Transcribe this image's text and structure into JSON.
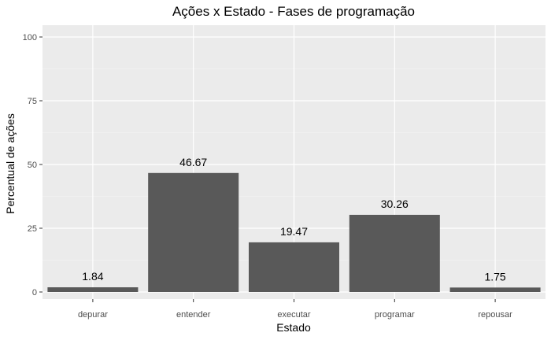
{
  "chart_data": {
    "type": "bar",
    "title": "Ações x Estado - Fases de programação",
    "xlabel": "Estado",
    "ylabel": "Percentual de ações",
    "categories": [
      "depurar",
      "entender",
      "executar",
      "programar",
      "repousar"
    ],
    "values": [
      1.84,
      46.67,
      19.47,
      30.26,
      1.75
    ],
    "data_labels": [
      "1.84",
      "46.67",
      "19.47",
      "30.26",
      "1.75"
    ],
    "ylim": [
      0,
      100
    ],
    "yticks": [
      0,
      25,
      50,
      75,
      100
    ],
    "ytick_labels": [
      "0",
      "25",
      "50",
      "75",
      "100"
    ],
    "grid": true,
    "legend": "none",
    "colors": {
      "bar": "#595959",
      "panel_background": "#ebebeb",
      "grid_major": "#ffffff",
      "grid_minor": "#f5f5f5"
    }
  }
}
